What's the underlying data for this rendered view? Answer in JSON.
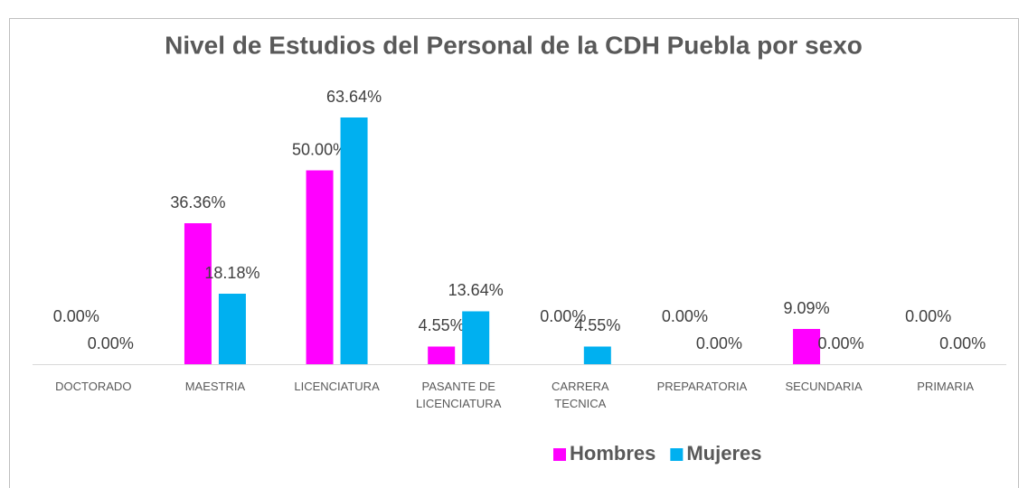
{
  "chart_data": {
    "type": "bar",
    "title": "Nivel de Estudios del Personal de la CDH Puebla por sexo",
    "categories": [
      "DOCTORADO",
      "MAESTRIA",
      "LICENCIATURA",
      "PASANTE DE LICENCIATURA",
      "CARRERA TECNICA",
      "PREPARATORIA",
      "SECUNDARIA",
      "PRIMARIA"
    ],
    "series": [
      {
        "name": "Hombres",
        "color": "#ff00ff",
        "values": [
          0,
          36.36,
          50,
          4.55,
          0,
          0,
          9.09,
          0
        ],
        "value_labels": [
          "0.00%",
          "36.36%",
          "50.00%",
          "4.55%",
          "0.00%",
          "0.00%",
          "9.09%",
          "0.00%"
        ]
      },
      {
        "name": "Mujeres",
        "color": "#00b0f0",
        "values": [
          0,
          18.18,
          63.64,
          13.64,
          4.55,
          0,
          0,
          0
        ],
        "value_labels": [
          "0.00%",
          "18.18%",
          "63.64%",
          "13.64%",
          "4.55%",
          "0.00%",
          "0.00%",
          "0.00%"
        ]
      }
    ],
    "legend": "bottom"
  }
}
